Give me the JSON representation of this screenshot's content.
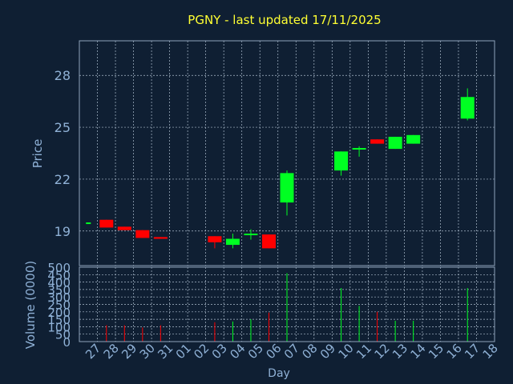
{
  "chart_data": {
    "type": "candlestick",
    "title": "PGNY - last updated 17/11/2025",
    "xlabel": "Day",
    "price_axis": {
      "label": "Price",
      "range": [
        17.0,
        30.0
      ],
      "ticks": [
        "19",
        "22",
        "25",
        "28"
      ]
    },
    "volume_axis": {
      "label": "Volume (0000)",
      "range": [
        0,
        500
      ],
      "ticks": [
        "0",
        "50",
        "100",
        "150",
        "200",
        "250",
        "300",
        "350",
        "400",
        "450",
        "500"
      ]
    },
    "categories": [
      "27",
      "28",
      "29",
      "30",
      "31",
      "01",
      "02",
      "03",
      "04",
      "05",
      "06",
      "07",
      "08",
      "09",
      "10",
      "11",
      "12",
      "13",
      "14",
      "15",
      "16",
      "17",
      "18"
    ],
    "candles": [
      {
        "day": "27",
        "open": 19.45,
        "close": 19.45,
        "high": 19.45,
        "low": 19.45,
        "volume": 0
      },
      {
        "day": "28",
        "open": 19.65,
        "close": 19.2,
        "high": 19.65,
        "low": 19.2,
        "volume": 110
      },
      {
        "day": "29",
        "open": 19.25,
        "close": 19.05,
        "high": 19.25,
        "low": 19.05,
        "volume": 110
      },
      {
        "day": "30",
        "open": 19.05,
        "close": 18.6,
        "high": 19.05,
        "low": 18.6,
        "volume": 95
      },
      {
        "day": "31",
        "open": 18.65,
        "close": 18.55,
        "high": 18.65,
        "low": 18.55,
        "volume": 110
      },
      {
        "day": "03",
        "open": 18.7,
        "close": 18.35,
        "high": 18.7,
        "low": 18.0,
        "volume": 130
      },
      {
        "day": "04",
        "open": 18.2,
        "close": 18.55,
        "high": 18.85,
        "low": 18.0,
        "volume": 135
      },
      {
        "day": "05",
        "open": 18.8,
        "close": 18.85,
        "high": 19.1,
        "low": 18.5,
        "volume": 150
      },
      {
        "day": "06",
        "open": 18.8,
        "close": 18.0,
        "high": 18.8,
        "low": 18.0,
        "volume": 195
      },
      {
        "day": "07",
        "open": 20.65,
        "close": 22.35,
        "high": 22.5,
        "low": 19.9,
        "volume": 460
      },
      {
        "day": "10",
        "open": 22.5,
        "close": 23.6,
        "high": 23.6,
        "low": 22.2,
        "volume": 360
      },
      {
        "day": "11",
        "open": 23.75,
        "close": 23.8,
        "high": 23.9,
        "low": 23.3,
        "volume": 240
      },
      {
        "day": "12",
        "open": 24.3,
        "close": 24.05,
        "high": 24.3,
        "low": 24.05,
        "volume": 200
      },
      {
        "day": "13",
        "open": 23.75,
        "close": 24.45,
        "high": 24.45,
        "low": 23.75,
        "volume": 140
      },
      {
        "day": "14",
        "open": 24.05,
        "close": 24.55,
        "high": 24.55,
        "low": 24.05,
        "volume": 140
      },
      {
        "day": "17",
        "open": 25.5,
        "close": 26.75,
        "high": 27.25,
        "low": 25.4,
        "volume": 360
      }
    ],
    "grid": true,
    "legend": "none",
    "colors": {
      "background": "#0f1f33",
      "up": "#00ff22",
      "down": "#ff0000",
      "grid": "#c8d8e8",
      "text": "#8fb1d6",
      "title": "#ffff33"
    }
  }
}
